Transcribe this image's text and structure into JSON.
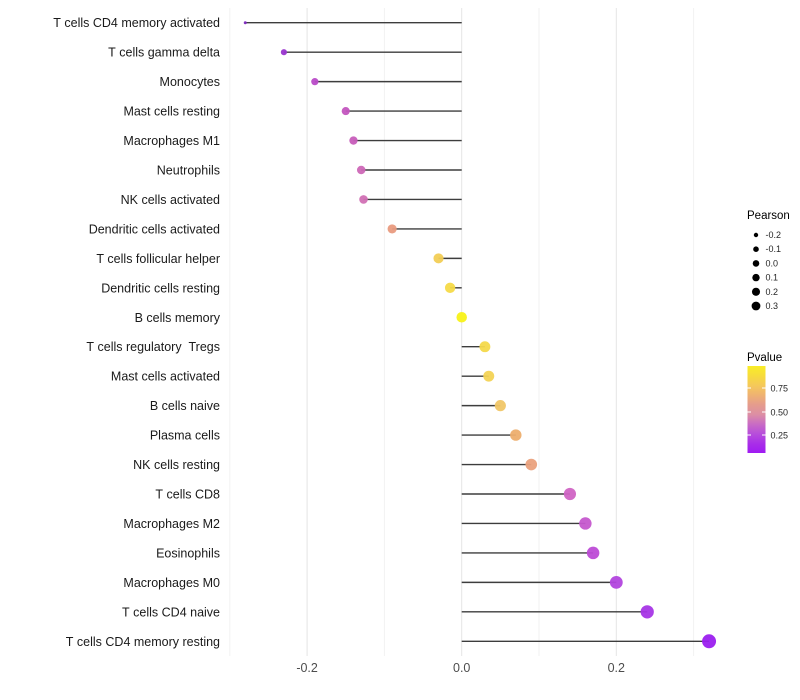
{
  "chart_data": {
    "type": "lollipop",
    "title": "",
    "xlabel": "",
    "ylabel": "",
    "orientation": "horizontal",
    "xlim": [
      -0.305,
      0.357
    ],
    "x_tick_labels": [
      "-0.2",
      "0.0",
      "0.2"
    ],
    "x_tick_values": [
      -0.2,
      0.0,
      0.2
    ],
    "major_gridlines": [
      -0.2,
      0.0,
      0.2
    ],
    "minor_gridlines": [
      -0.3,
      -0.1,
      0.1,
      0.3
    ],
    "grid": true,
    "stem_color": "#3d3d3d",
    "rows": [
      {
        "label": "T cells CD4 memory activated",
        "pearson": -0.28,
        "color": "#7d28be"
      },
      {
        "label": "T cells gamma delta",
        "pearson": -0.23,
        "color": "#9935cf"
      },
      {
        "label": "Monocytes",
        "pearson": -0.19,
        "color": "#b94bc8"
      },
      {
        "label": "Mast cells resting",
        "pearson": -0.15,
        "color": "#c355bf"
      },
      {
        "label": "Macrophages M1",
        "pearson": -0.14,
        "color": "#c75dbb"
      },
      {
        "label": "Neutrophils",
        "pearson": -0.13,
        "color": "#cd68b7"
      },
      {
        "label": "NK cells activated",
        "pearson": -0.127,
        "color": "#d170b4"
      },
      {
        "label": "Dendritic cells activated",
        "pearson": -0.09,
        "color": "#e99b80"
      },
      {
        "label": "T cells follicular helper",
        "pearson": -0.03,
        "color": "#f2ce55"
      },
      {
        "label": "Dendritic cells resting",
        "pearson": -0.015,
        "color": "#f5da48"
      },
      {
        "label": "B cells memory",
        "pearson": 0.0,
        "color": "#f8f218"
      },
      {
        "label": "T cells regulatory  Tregs",
        "pearson": 0.03,
        "color": "#f4d94b"
      },
      {
        "label": "Mast cells activated",
        "pearson": 0.035,
        "color": "#f3d355"
      },
      {
        "label": "B cells naive",
        "pearson": 0.05,
        "color": "#f0c667"
      },
      {
        "label": "Plasma cells",
        "pearson": 0.07,
        "color": "#edae6e"
      },
      {
        "label": "NK cells resting",
        "pearson": 0.09,
        "color": "#eaa17d"
      },
      {
        "label": "T cells CD8",
        "pearson": 0.14,
        "color": "#d064c4"
      },
      {
        "label": "Macrophages M2",
        "pearson": 0.16,
        "color": "#c557ce"
      },
      {
        "label": "Eosinophils",
        "pearson": 0.17,
        "color": "#bd4bd6"
      },
      {
        "label": "Macrophages M0",
        "pearson": 0.2,
        "color": "#b244de"
      },
      {
        "label": "T cells CD4 naive",
        "pearson": 0.24,
        "color": "#a636e6"
      },
      {
        "label": "T cells CD4 memory resting",
        "pearson": 0.32,
        "color": "#9b1fef"
      }
    ],
    "size_legend": {
      "title": "Pearson",
      "labels": [
        "-0.2",
        "-0.1",
        "0.0",
        "0.1",
        "0.2",
        "0.3"
      ],
      "dot_diameters": [
        4.4,
        5.6,
        6.6,
        7.4,
        8.1,
        8.8
      ],
      "dot_color": "#000000"
    },
    "color_legend": {
      "title": "Pvalue",
      "labels": [
        "0.75",
        "0.50",
        "0.25"
      ],
      "gradient_top_to_bottom": [
        "#f9ed27",
        "#f7dc3c",
        "#f5c95a",
        "#efb272",
        "#e59c8d",
        "#dc8fa4",
        "#c96cc4",
        "#b74edb",
        "#a92fe8",
        "#a01af2"
      ]
    },
    "axis_text_color": "#4d4d4d",
    "label_text_color": "#1a1a1a"
  }
}
